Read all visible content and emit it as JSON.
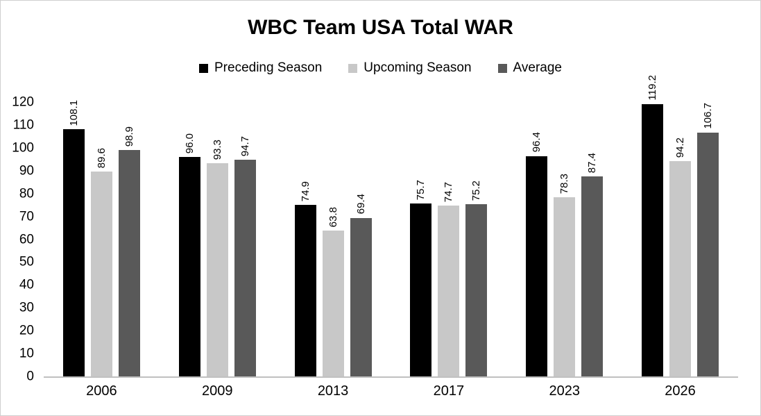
{
  "title": "WBC Team USA Total WAR",
  "colors": {
    "preceding_season": "#000000",
    "upcoming_season": "#c8c8c8",
    "average": "#595959",
    "axis_line": "#c0c0c0"
  },
  "chart_data": {
    "type": "bar",
    "title": "WBC Team USA Total WAR",
    "categories": [
      "2006",
      "2009",
      "2013",
      "2017",
      "2023",
      "2026"
    ],
    "series": [
      {
        "name": "Preceding Season",
        "color": "#000000",
        "values": [
          108.1,
          96.0,
          74.9,
          75.7,
          96.4,
          119.2
        ]
      },
      {
        "name": "Upcoming Season",
        "color": "#c8c8c8",
        "values": [
          89.6,
          93.3,
          63.8,
          74.7,
          78.3,
          94.2
        ]
      },
      {
        "name": "Average",
        "color": "#595959",
        "values": [
          98.9,
          94.7,
          69.4,
          75.2,
          87.4,
          106.7
        ]
      }
    ],
    "xlabel": "",
    "ylabel": "",
    "ylim": [
      0,
      120
    ],
    "ytick_step": 10,
    "grid": false,
    "legend_position": "top",
    "data_labels": "rotated-90, one decimal"
  }
}
